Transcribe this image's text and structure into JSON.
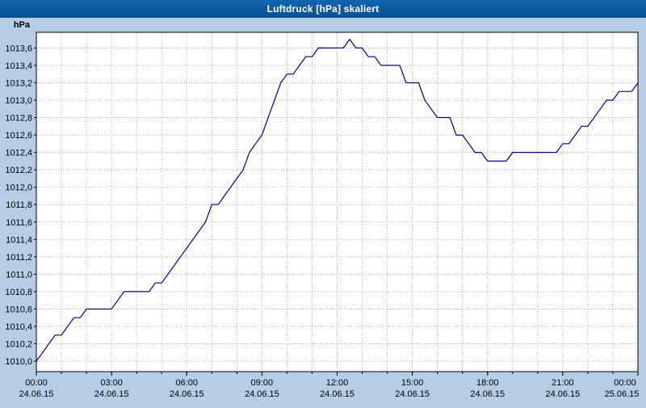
{
  "titlebar": {
    "note": "window title equals chart title"
  },
  "chart_data": {
    "type": "line",
    "title": "Luftdruck [hPa] skaliert",
    "ylabel": "hPa",
    "xlabel": "",
    "xlim_hours": [
      0,
      24
    ],
    "ylim": [
      1009.88,
      1013.78
    ],
    "grid": "dotted, vertical every 1 h, horizontal every 0.2 hPa",
    "legend_position": "none",
    "line_color": "#00008b",
    "plot_bg": "#ffffff",
    "page_bg": "#b6cde6",
    "titlebar_color": "#0d5ba5",
    "x_step_hours": 0.25,
    "x_start_hours": 0,
    "values": [
      1010.0,
      1010.1,
      1010.2,
      1010.3,
      1010.3,
      1010.4,
      1010.5,
      1010.5,
      1010.6,
      1010.6,
      1010.6,
      1010.6,
      1010.6,
      1010.7,
      1010.8,
      1010.8,
      1010.8,
      1010.8,
      1010.8,
      1010.9,
      1010.9,
      1011.0,
      1011.1,
      1011.2,
      1011.3,
      1011.4,
      1011.5,
      1011.6,
      1011.8,
      1011.8,
      1011.9,
      1012.0,
      1012.1,
      1012.2,
      1012.4,
      1012.5,
      1012.6,
      1012.8,
      1013.0,
      1013.2,
      1013.3,
      1013.3,
      1013.4,
      1013.5,
      1013.5,
      1013.6,
      1013.6,
      1013.6,
      1013.6,
      1013.6,
      1013.7,
      1013.6,
      1013.6,
      1013.5,
      1013.5,
      1013.4,
      1013.4,
      1013.4,
      1013.4,
      1013.2,
      1013.2,
      1013.2,
      1013.0,
      1012.9,
      1012.8,
      1012.8,
      1012.8,
      1012.6,
      1012.6,
      1012.5,
      1012.4,
      1012.4,
      1012.3,
      1012.3,
      1012.3,
      1012.3,
      1012.4,
      1012.4,
      1012.4,
      1012.4,
      1012.4,
      1012.4,
      1012.4,
      1012.4,
      1012.5,
      1012.5,
      1012.6,
      1012.7,
      1012.7,
      1012.8,
      1012.9,
      1013.0,
      1013.0,
      1013.1,
      1013.1,
      1013.1,
      1013.2
    ],
    "y_ticks": {
      "values": [
        1010.0,
        1010.2,
        1010.4,
        1010.6,
        1010.8,
        1011.0,
        1011.2,
        1011.4,
        1011.6,
        1011.8,
        1012.0,
        1012.2,
        1012.4,
        1012.6,
        1012.8,
        1013.0,
        1013.2,
        1013.4,
        1013.6
      ],
      "labels": [
        "1010,0",
        "1010,2",
        "1010,4",
        "1010,6",
        "1010,8",
        "1011,0",
        "1011,2",
        "1011,4",
        "1011,6",
        "1011,8",
        "1012,0",
        "1012,2",
        "1012,4",
        "1012,6",
        "1012,8",
        "1013,0",
        "1013,2",
        "1013,4",
        "1013,6"
      ]
    },
    "x_ticks": [
      {
        "hour": 0,
        "time": "00:00",
        "date": "24.06.15"
      },
      {
        "hour": 3,
        "time": "03:00",
        "date": "24.06.15"
      },
      {
        "hour": 6,
        "time": "06:00",
        "date": "24.06.15"
      },
      {
        "hour": 9,
        "time": "09:00",
        "date": "24.06.15"
      },
      {
        "hour": 12,
        "time": "12:00",
        "date": "24.06.15"
      },
      {
        "hour": 15,
        "time": "15:00",
        "date": "24.06.15"
      },
      {
        "hour": 18,
        "time": "18:00",
        "date": "24.06.15"
      },
      {
        "hour": 21,
        "time": "21:00",
        "date": "24.06.15"
      },
      {
        "hour": 24,
        "time": "00:00",
        "date": "25.06.15"
      }
    ]
  }
}
